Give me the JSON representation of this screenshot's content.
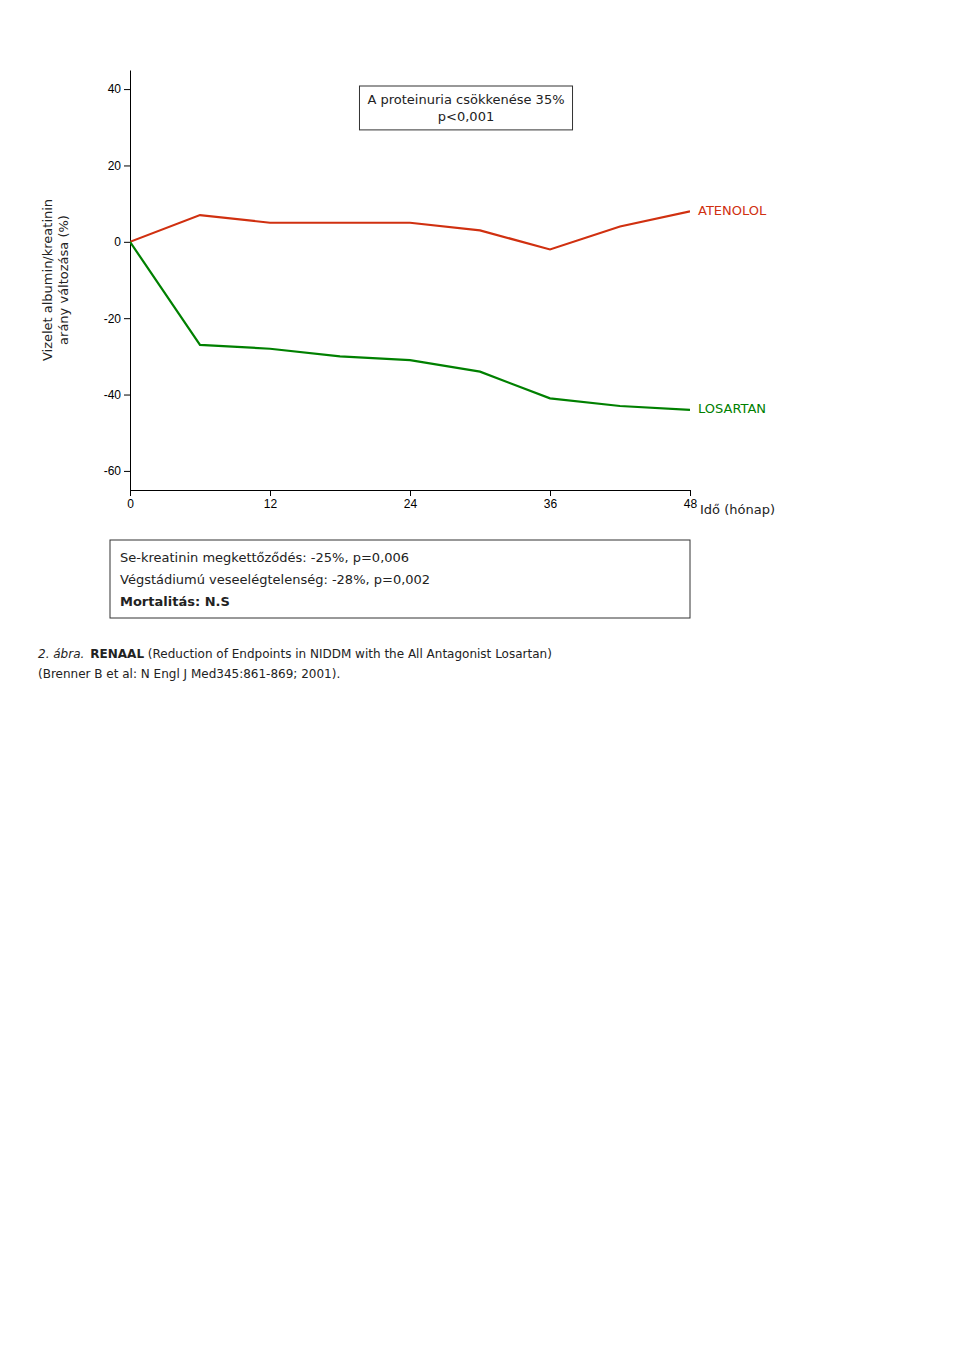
{
  "chart_data": {
    "type": "line",
    "x": [
      0,
      6,
      12,
      18,
      24,
      30,
      36,
      42,
      48
    ],
    "series": [
      {
        "name": "ATENOLOL",
        "color": "#d03010",
        "values": [
          0,
          7,
          5,
          5,
          5,
          3,
          -2,
          4,
          8
        ]
      },
      {
        "name": "LOSARTAN",
        "color": "#008000",
        "values": [
          0,
          -27,
          -28,
          -30,
          -31,
          -34,
          -41,
          -43,
          -44
        ]
      }
    ],
    "xlabel": "Idő (hónap)",
    "ylabel": "Vizelet albumin/kreatinin\narány változása (%)",
    "xlim": [
      0,
      48
    ],
    "ylim": [
      -65,
      45
    ],
    "xticks": [
      0,
      12,
      24,
      36,
      48
    ],
    "yticks": [
      -60,
      -40,
      -20,
      0,
      20,
      40
    ],
    "grid": false,
    "annotation": "A proteinuria csökkenése 35%\np<0,001",
    "stats": [
      "Se-kreatinin megkettőződés: -25%, p=0,006",
      "Végstádiumú veseelégtelenség: -28%, p=0,002",
      "Mortalitás: N.S"
    ],
    "caption": [
      "2. ábra.",
      "RENAAL",
      " (Reduction of Endpoints in NIDDM with the All Antagonist Losartan)",
      "(Brenner B et al: N Engl J Med345:861-869; 2001)."
    ]
  }
}
